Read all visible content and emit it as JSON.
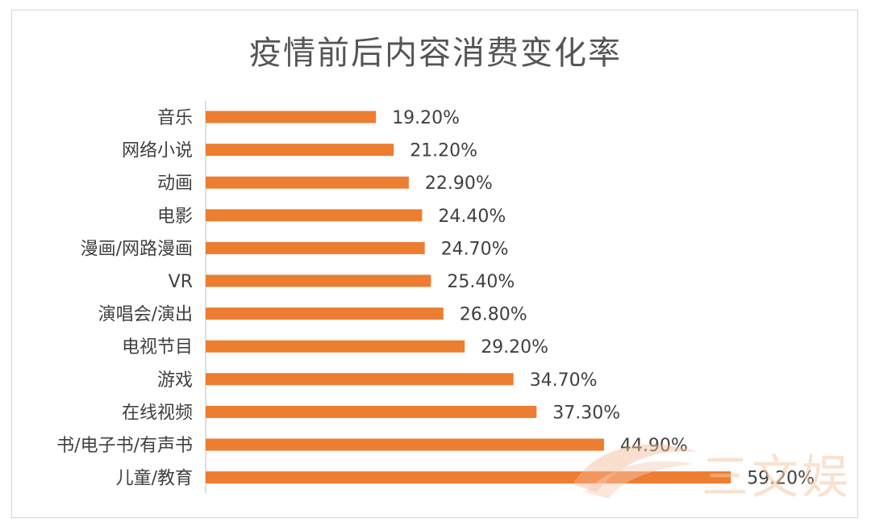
{
  "top_text": "",
  "watermark_text": "三文娱",
  "chart_data": {
    "type": "bar",
    "orientation": "horizontal",
    "title": "疫情前后内容消费变化率",
    "xlabel": "",
    "ylabel": "",
    "xlim": [
      0,
      70
    ],
    "grid": false,
    "legend": "none",
    "bar_color": "#ED7D31",
    "categories": [
      "音乐",
      "网络小说",
      "动画",
      "电影",
      "漫画/网路漫画",
      "VR",
      "演唱会/演出",
      "电视节目",
      "游戏",
      "在线视频",
      "书/电子书/有声书",
      "儿童/教育"
    ],
    "values": [
      19.2,
      21.2,
      22.9,
      24.4,
      24.7,
      25.4,
      26.8,
      29.2,
      34.7,
      37.3,
      44.9,
      59.2
    ],
    "data_labels": [
      "19.20%",
      "21.20%",
      "22.90%",
      "24.40%",
      "24.70%",
      "25.40%",
      "26.80%",
      "29.20%",
      "34.70%",
      "37.30%",
      "44.90%",
      "59.20%"
    ]
  }
}
